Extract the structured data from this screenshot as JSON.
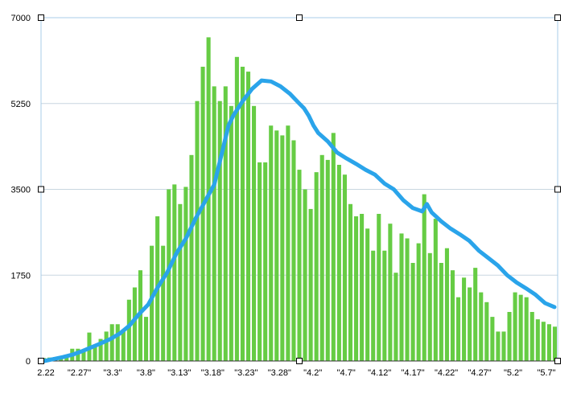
{
  "chart_data": {
    "type": "bar",
    "title": "",
    "xlabel": "",
    "ylabel": "",
    "ylim": [
      0,
      7000
    ],
    "yticks": [
      "0",
      "1750",
      "3500",
      "5250",
      "7000"
    ],
    "xtick_labels": [
      "2.22",
      "\"2.27\"",
      "\"3.3\"",
      "\"3.8\"",
      "\"3.13\"",
      "\"3.18\"",
      "\"3.23\"",
      "\"3.28\"",
      "\"4.2\"",
      "\"4.7\"",
      "\"4.12\"",
      "\"4.17\"",
      "\"4.22\"",
      "\"4.27\"",
      "\"5.2\"",
      "\"5.7\""
    ],
    "grid": true,
    "legend": "none",
    "bar_color": "#66cc44",
    "line_color": "#2aa4ea",
    "bars": [
      60,
      70,
      80,
      90,
      100,
      250,
      250,
      220,
      580,
      300,
      450,
      600,
      750,
      750,
      600,
      1250,
      1500,
      1850,
      900,
      2350,
      2950,
      2350,
      3500,
      3600,
      3200,
      3550,
      4200,
      5300,
      6000,
      6600,
      5600,
      5300,
      5600,
      5200,
      6200,
      6000,
      5900,
      5200,
      4050,
      4050,
      4800,
      4700,
      4600,
      4800,
      4500,
      3900,
      3500,
      3100,
      3850,
      4200,
      4100,
      4650,
      4000,
      3800,
      3200,
      2950,
      3000,
      2700,
      2250,
      3000,
      2250,
      2800,
      1800,
      2600,
      2500,
      2000,
      2400,
      3400,
      2200,
      2900,
      2000,
      2300,
      1850,
      1300,
      1700,
      1500,
      1900,
      1400,
      1200,
      900,
      600,
      600,
      1000,
      1400,
      1350,
      1300,
      1000,
      850,
      800,
      750,
      700
    ],
    "line_points": [
      [
        0,
        0
      ],
      [
        2,
        40
      ],
      [
        4,
        80
      ],
      [
        6,
        130
      ],
      [
        8,
        200
      ],
      [
        10,
        280
      ],
      [
        12,
        360
      ],
      [
        14,
        450
      ],
      [
        16,
        560
      ],
      [
        18,
        720
      ],
      [
        20,
        950
      ],
      [
        21,
        1050
      ],
      [
        22,
        1150
      ],
      [
        24,
        1500
      ],
      [
        26,
        1800
      ],
      [
        28,
        2200
      ],
      [
        30,
        2500
      ],
      [
        32,
        2900
      ],
      [
        34,
        3250
      ],
      [
        36,
        3600
      ],
      [
        37,
        4000
      ],
      [
        38,
        4400
      ],
      [
        39,
        4800
      ],
      [
        40,
        5000
      ],
      [
        42,
        5300
      ],
      [
        44,
        5550
      ],
      [
        46,
        5720
      ],
      [
        48,
        5700
      ],
      [
        50,
        5600
      ],
      [
        52,
        5450
      ],
      [
        54,
        5250
      ],
      [
        55,
        5150
      ],
      [
        56,
        5000
      ],
      [
        57,
        4800
      ],
      [
        58,
        4650
      ],
      [
        60,
        4480
      ],
      [
        62,
        4250
      ],
      [
        64,
        4130
      ],
      [
        66,
        4020
      ],
      [
        68,
        3900
      ],
      [
        70,
        3800
      ],
      [
        72,
        3620
      ],
      [
        74,
        3500
      ],
      [
        76,
        3280
      ],
      [
        78,
        3120
      ],
      [
        80,
        3050
      ],
      [
        81,
        3200
      ],
      [
        82,
        3030
      ],
      [
        84,
        2850
      ],
      [
        86,
        2700
      ],
      [
        88,
        2580
      ],
      [
        90,
        2450
      ],
      [
        92,
        2250
      ],
      [
        94,
        2100
      ],
      [
        96,
        1950
      ],
      [
        98,
        1750
      ],
      [
        100,
        1600
      ],
      [
        102,
        1480
      ],
      [
        104,
        1350
      ],
      [
        106,
        1180
      ],
      [
        108,
        1100
      ]
    ],
    "line_x_max": 108
  }
}
